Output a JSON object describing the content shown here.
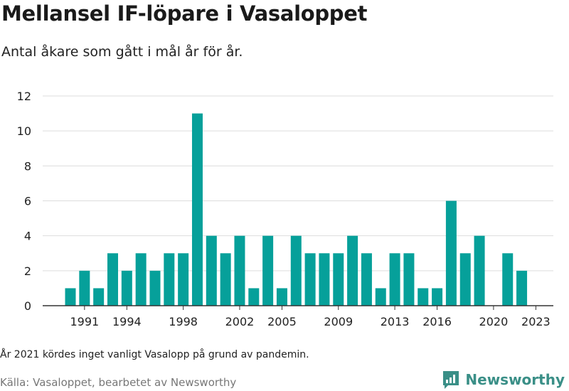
{
  "header": {
    "title": "Mellansel IF-löpare i Vasaloppet",
    "subtitle": "Antal åkare som gått i mål år för år."
  },
  "footer": {
    "note": "År 2021 kördes inget vanligt Vasalopp på grund av pandemin.",
    "source": "Källa: Vasaloppet, bearbetet av Newsworthy",
    "brand": "Newsworthy",
    "brand_icon": "newsworthy-logo-icon"
  },
  "colors": {
    "bar": "#06a09a",
    "grid": "#dddddd",
    "axis": "#333333",
    "brand": "#3a8f87"
  },
  "chart_data": {
    "type": "bar",
    "categories": [
      "1990",
      "1991",
      "1992",
      "1993",
      "1994",
      "1995",
      "1996",
      "1997",
      "1998",
      "1999",
      "2000",
      "2001",
      "2002",
      "2003",
      "2004",
      "2005",
      "2006",
      "2007",
      "2008",
      "2009",
      "2010",
      "2011",
      "2012",
      "2013",
      "2014",
      "2015",
      "2016",
      "2017",
      "2018",
      "2019",
      "2020",
      "2021",
      "2022",
      "2023"
    ],
    "values": [
      1,
      2,
      1,
      3,
      2,
      3,
      2,
      3,
      3,
      11,
      4,
      3,
      4,
      1,
      4,
      1,
      4,
      3,
      3,
      3,
      4,
      3,
      1,
      3,
      3,
      1,
      1,
      6,
      3,
      4,
      0,
      3,
      2,
      null
    ],
    "x_tick_labels": [
      "1991",
      "1994",
      "1998",
      "2002",
      "2005",
      "2009",
      "2013",
      "2016",
      "2020",
      "2023"
    ],
    "y_ticks": [
      0,
      2,
      4,
      6,
      8,
      10,
      12
    ],
    "ylim": [
      0,
      12
    ],
    "grid": true,
    "legend": "none",
    "xlabel": "",
    "ylabel": ""
  }
}
